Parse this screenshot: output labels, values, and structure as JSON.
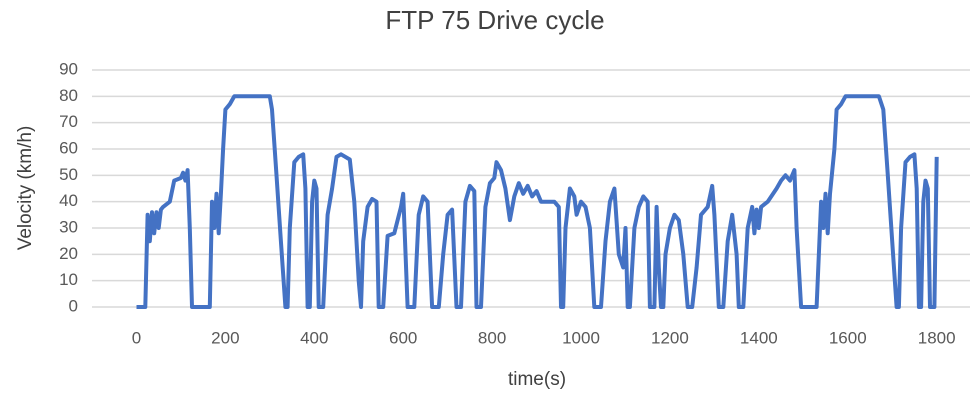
{
  "chart_data": {
    "type": "line",
    "title": "FTP 75 Drive cycle",
    "x_label": "time(s)",
    "y_label": "Velocity (km/h)",
    "color": "#4472c4",
    "grid": true,
    "xlim": [
      -100,
      1875
    ],
    "xticks": [
      0,
      200,
      400,
      600,
      800,
      1000,
      1200,
      1400,
      1600,
      1800
    ],
    "ylim": [
      0,
      90
    ],
    "yticks": [
      0,
      10,
      20,
      30,
      40,
      50,
      60,
      70,
      80,
      90
    ],
    "x": [
      0,
      20,
      25,
      30,
      35,
      40,
      45,
      50,
      55,
      60,
      75,
      85,
      100,
      105,
      110,
      115,
      120,
      125,
      165,
      170,
      175,
      180,
      185,
      190,
      195,
      200,
      210,
      220,
      300,
      305,
      315,
      325,
      335,
      340,
      345,
      355,
      365,
      375,
      380,
      385,
      390,
      395,
      400,
      405,
      410,
      420,
      430,
      440,
      450,
      460,
      480,
      490,
      500,
      505,
      510,
      520,
      530,
      540,
      545,
      555,
      565,
      580,
      595,
      600,
      610,
      625,
      635,
      645,
      655,
      665,
      680,
      690,
      700,
      710,
      720,
      730,
      740,
      750,
      760,
      765,
      775,
      785,
      795,
      805,
      810,
      820,
      830,
      840,
      850,
      860,
      870,
      880,
      890,
      900,
      910,
      940,
      950,
      955,
      960,
      965,
      975,
      985,
      990,
      1000,
      1010,
      1020,
      1030,
      1045,
      1055,
      1065,
      1075,
      1085,
      1095,
      1100,
      1105,
      1110,
      1120,
      1130,
      1140,
      1150,
      1155,
      1165,
      1170,
      1175,
      1180,
      1185,
      1190,
      1200,
      1210,
      1220,
      1230,
      1240,
      1250,
      1260,
      1270,
      1285,
      1295,
      1300,
      1310,
      1320,
      1330,
      1340,
      1350,
      1355,
      1365,
      1375,
      1385,
      1390,
      1395,
      1400,
      1405,
      1420,
      1440,
      1450,
      1460,
      1470,
      1480,
      1485,
      1495,
      1530,
      1540,
      1545,
      1550,
      1555,
      1560,
      1570,
      1575,
      1585,
      1595,
      1670,
      1680,
      1690,
      1700,
      1710,
      1715,
      1720,
      1730,
      1740,
      1750,
      1755,
      1760,
      1765,
      1770,
      1775,
      1780,
      1785,
      1795,
      1800
    ],
    "values": [
      0,
      0,
      35,
      25,
      36,
      28,
      36,
      30,
      37,
      38,
      40,
      48,
      49,
      51,
      48,
      52,
      30,
      0,
      0,
      40,
      30,
      43,
      28,
      43,
      60,
      75,
      77,
      80,
      80,
      75,
      50,
      25,
      0,
      0,
      30,
      55,
      57,
      58,
      45,
      0,
      0,
      40,
      48,
      45,
      0,
      0,
      35,
      45,
      57,
      58,
      56,
      40,
      10,
      0,
      25,
      38,
      41,
      40,
      0,
      0,
      27,
      28,
      38,
      43,
      0,
      0,
      35,
      42,
      40,
      0,
      0,
      20,
      35,
      37,
      0,
      0,
      40,
      46,
      44,
      0,
      0,
      38,
      47,
      49,
      55,
      52,
      45,
      33,
      42,
      47,
      43,
      46,
      42,
      44,
      40,
      40,
      38,
      0,
      0,
      30,
      45,
      42,
      35,
      40,
      38,
      30,
      0,
      0,
      25,
      40,
      45,
      20,
      15,
      30,
      0,
      0,
      30,
      38,
      42,
      40,
      0,
      0,
      38,
      15,
      0,
      0,
      20,
      30,
      35,
      33,
      20,
      0,
      0,
      15,
      35,
      38,
      46,
      35,
      0,
      0,
      25,
      35,
      20,
      0,
      0,
      30,
      38,
      28,
      37,
      30,
      38,
      40,
      45,
      48,
      50,
      48,
      52,
      30,
      0,
      0,
      40,
      30,
      43,
      28,
      43,
      60,
      75,
      77,
      80,
      80,
      75,
      50,
      25,
      0,
      0,
      30,
      55,
      57,
      58,
      45,
      0,
      0,
      40,
      48,
      45,
      0,
      0,
      57
    ]
  }
}
